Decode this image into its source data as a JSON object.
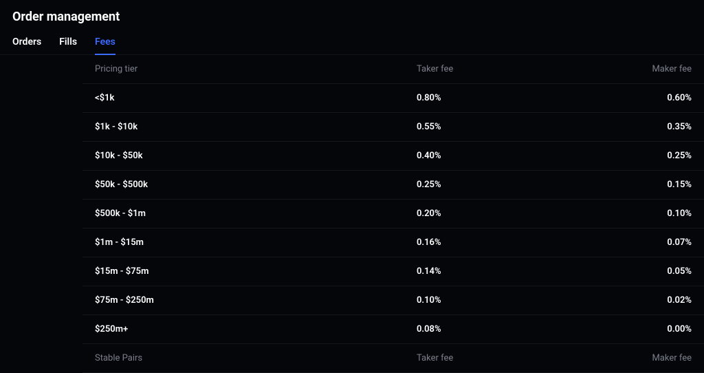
{
  "header": {
    "title": "Order management"
  },
  "tabs": {
    "items": [
      {
        "label": "Orders",
        "active": false
      },
      {
        "label": "Fills",
        "active": false
      },
      {
        "label": "Fees",
        "active": true
      }
    ]
  },
  "fees_table": {
    "columns": {
      "tier": "Pricing tier",
      "taker": "Taker fee",
      "maker": "Maker fee"
    },
    "rows": [
      {
        "tier": "<$1k",
        "taker": "0.80%",
        "maker": "0.60%"
      },
      {
        "tier": "$1k - $10k",
        "taker": "0.55%",
        "maker": "0.35%"
      },
      {
        "tier": "$10k - $50k",
        "taker": "0.40%",
        "maker": "0.25%"
      },
      {
        "tier": "$50k - $500k",
        "taker": "0.25%",
        "maker": "0.15%"
      },
      {
        "tier": "$500k - $1m",
        "taker": "0.20%",
        "maker": "0.10%"
      },
      {
        "tier": "$1m - $15m",
        "taker": "0.16%",
        "maker": "0.07%"
      },
      {
        "tier": "$15m - $75m",
        "taker": "0.14%",
        "maker": "0.05%"
      },
      {
        "tier": "$75m - $250m",
        "taker": "0.10%",
        "maker": "0.02%"
      },
      {
        "tier": "$250m+",
        "taker": "0.08%",
        "maker": "0.00%"
      }
    ],
    "second_header": {
      "tier": "Stable Pairs",
      "taker": "Taker fee",
      "maker": "Maker fee"
    }
  },
  "colors": {
    "background": "#05060a",
    "text_primary": "#ffffff",
    "text_muted": "#7a7f8a",
    "accent": "#3b6bff",
    "row_border": "rgba(255,255,255,0.07)"
  }
}
